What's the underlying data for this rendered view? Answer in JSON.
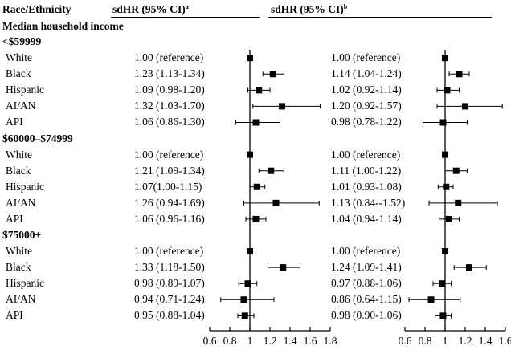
{
  "header": {
    "race_label": "Race/Ethnicity",
    "col1_label": "sdHR (95% CI)",
    "col1_sup": "a",
    "col2_label": "sdHR (95% CI)",
    "col2_sup": "b"
  },
  "section_title": "Median household income",
  "groups": [
    {
      "label": "<$59999",
      "rows": [
        {
          "race": "White",
          "left": "1.00 (reference)",
          "right": "1.00 (reference)"
        },
        {
          "race": "Black",
          "left": "1.23 (1.13-1.34)",
          "right": "1.14 (1.04-1.24)"
        },
        {
          "race": "Hispanic",
          "left": "1.09 (0.98-1.20)",
          "right": "1.02 (0.92-1.14)"
        },
        {
          "race": "AI/AN",
          "left": "1.32 (1.03-1.70)",
          "right": "1.20 (0.92-1.57)"
        },
        {
          "race": "API",
          "left": "1.06 (0.86-1.30)",
          "right": "0.98 (0.78-1.22)"
        }
      ]
    },
    {
      "label": "$60000–$74999",
      "rows": [
        {
          "race": "White",
          "left": "1.00 (reference)",
          "right": "1.00 (reference)"
        },
        {
          "race": "Black",
          "left": "1.21 (1.09-1.34)",
          "right": "1.11 (1.00-1.22)"
        },
        {
          "race": "Hispanic",
          "left": "1.07(1.00-1.15)",
          "right": "1.01 (0.93-1.08)"
        },
        {
          "race": "AI/AN",
          "left": "1.26 (0.94-1.69)",
          "right": "1.13 (0.84--1.52)"
        },
        {
          "race": "API",
          "left": "1.06 (0.96-1.16)",
          "right": "1.04 (0.94-1.14)"
        }
      ]
    },
    {
      "label": "$75000+",
      "rows": [
        {
          "race": "White",
          "left": "1.00 (reference)",
          "right": "1.00 (reference)"
        },
        {
          "race": "Black",
          "left": "1.33 (1.18-1.50)",
          "right": "1.24 (1.09-1.41)"
        },
        {
          "race": "Hispanic",
          "left": "0.98 (0.89-1.07)",
          "right": "0.97 (0.88-1.06)"
        },
        {
          "race": "AI/AN",
          "left": "0.94 (0.71-1.24)",
          "right": "0.86 (0.64-1.15)"
        },
        {
          "race": "API",
          "left": "0.95 (0.88-1.04)",
          "right": "0.98 (0.90-1.06)"
        }
      ]
    }
  ],
  "chart_data": [
    {
      "type": "forest",
      "reference_line": 1,
      "xlim": [
        0.6,
        1.8
      ],
      "xticks": [
        "0.6",
        "0.8",
        "1",
        "1.2",
        "1.4",
        "1.6",
        "1.8"
      ],
      "estimates": [
        [
          1.0,
          1.0,
          1.0
        ],
        [
          1.23,
          1.13,
          1.34
        ],
        [
          1.09,
          0.98,
          1.2
        ],
        [
          1.32,
          1.03,
          1.7
        ],
        [
          1.06,
          0.86,
          1.3
        ],
        [
          1.0,
          1.0,
          1.0
        ],
        [
          1.21,
          1.09,
          1.34
        ],
        [
          1.07,
          1.0,
          1.15
        ],
        [
          1.26,
          0.94,
          1.69
        ],
        [
          1.06,
          0.96,
          1.16
        ],
        [
          1.0,
          1.0,
          1.0
        ],
        [
          1.33,
          1.18,
          1.5
        ],
        [
          0.98,
          0.89,
          1.07
        ],
        [
          0.94,
          0.71,
          1.24
        ],
        [
          0.95,
          0.88,
          1.04
        ]
      ]
    },
    {
      "type": "forest",
      "reference_line": 1,
      "xlim": [
        0.6,
        1.6
      ],
      "xticks": [
        "0.6",
        "0.8",
        "1",
        "1.2",
        "1.4",
        "1.6"
      ],
      "estimates": [
        [
          1.0,
          1.0,
          1.0
        ],
        [
          1.14,
          1.04,
          1.24
        ],
        [
          1.02,
          0.92,
          1.14
        ],
        [
          1.2,
          0.92,
          1.57
        ],
        [
          0.98,
          0.78,
          1.22
        ],
        [
          1.0,
          1.0,
          1.0
        ],
        [
          1.11,
          1.0,
          1.22
        ],
        [
          1.01,
          0.93,
          1.08
        ],
        [
          1.13,
          0.84,
          1.52
        ],
        [
          1.04,
          0.94,
          1.14
        ],
        [
          1.0,
          1.0,
          1.0
        ],
        [
          1.24,
          1.09,
          1.41
        ],
        [
          0.97,
          0.88,
          1.06
        ],
        [
          0.86,
          0.64,
          1.15
        ],
        [
          0.98,
          0.9,
          1.06
        ]
      ]
    }
  ]
}
